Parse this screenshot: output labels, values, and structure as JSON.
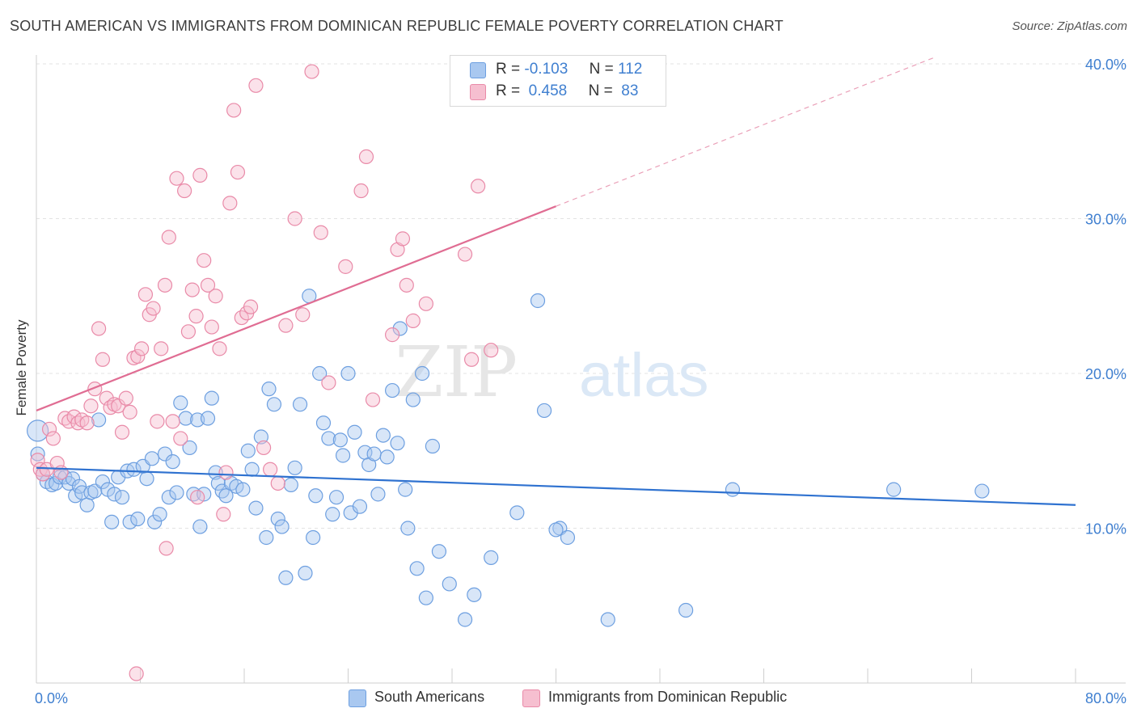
{
  "title": "SOUTH AMERICAN VS IMMIGRANTS FROM DOMINICAN REPUBLIC FEMALE POVERTY CORRELATION CHART",
  "source": "Source: ZipAtlas.com",
  "watermark": {
    "zip": "ZIP",
    "atlas": "atlas"
  },
  "legend_top": [
    {
      "r_label": "R =",
      "r_value": "-0.103",
      "n_label": "N =",
      "n_value": "112",
      "color": "#a9c8f0",
      "border": "#6d9fe0"
    },
    {
      "r_label": "R =",
      "r_value": " 0.458",
      "n_label": "N =",
      "n_value": " 83",
      "color": "#f6bfd0",
      "border": "#e98aa8"
    }
  ],
  "legend_bottom": [
    {
      "label": "South Americans",
      "color": "#a9c8f0",
      "border": "#6d9fe0"
    },
    {
      "label": "Immigrants from Dominican Republic",
      "color": "#f6bfd0",
      "border": "#e98aa8"
    }
  ],
  "chart_data": {
    "type": "scatter",
    "title": "SOUTH AMERICAN VS IMMIGRANTS FROM DOMINICAN REPUBLIC FEMALE POVERTY CORRELATION CHART",
    "xlabel": "",
    "ylabel": "Female Poverty",
    "xlim": [
      0,
      80
    ],
    "ylim": [
      0,
      40
    ],
    "x_tick_labels": [
      "0.0%",
      "80.0%"
    ],
    "y_ticks": [
      10,
      20,
      30,
      40
    ],
    "y_tick_labels": [
      "10.0%",
      "20.0%",
      "30.0%",
      "40.0%"
    ],
    "grid": true,
    "legend_placement": "top-center",
    "series": [
      {
        "name": "South Americans",
        "color": "#6d9fe0",
        "fill": "#a9c8f0",
        "r": -0.103,
        "n": 112,
        "trend": {
          "x0": 0,
          "y0": 13.9,
          "x1": 80,
          "y1": 11.5
        },
        "points": [
          [
            0.1,
            16.3
          ],
          [
            0.1,
            14.8
          ],
          [
            0.5,
            13.5
          ],
          [
            0.8,
            13.0
          ],
          [
            1.2,
            12.8
          ],
          [
            1.5,
            12.9
          ],
          [
            1.8,
            13.3
          ],
          [
            2.2,
            13.3
          ],
          [
            2.5,
            12.9
          ],
          [
            2.8,
            13.2
          ],
          [
            3.0,
            12.1
          ],
          [
            3.3,
            12.7
          ],
          [
            3.5,
            12.3
          ],
          [
            3.9,
            11.5
          ],
          [
            4.2,
            12.3
          ],
          [
            4.5,
            12.4
          ],
          [
            4.8,
            17.0
          ],
          [
            5.1,
            13.0
          ],
          [
            5.5,
            12.5
          ],
          [
            5.8,
            10.4
          ],
          [
            6.0,
            12.2
          ],
          [
            6.3,
            13.3
          ],
          [
            6.6,
            12.0
          ],
          [
            7.0,
            13.7
          ],
          [
            7.2,
            10.4
          ],
          [
            7.5,
            13.8
          ],
          [
            7.8,
            10.6
          ],
          [
            8.2,
            14.0
          ],
          [
            8.5,
            13.2
          ],
          [
            8.9,
            14.5
          ],
          [
            9.1,
            10.4
          ],
          [
            9.5,
            10.9
          ],
          [
            9.9,
            14.8
          ],
          [
            10.2,
            12.0
          ],
          [
            10.5,
            14.3
          ],
          [
            10.8,
            12.3
          ],
          [
            11.1,
            18.1
          ],
          [
            11.5,
            17.1
          ],
          [
            11.8,
            15.2
          ],
          [
            12.1,
            12.2
          ],
          [
            12.4,
            17.0
          ],
          [
            12.6,
            10.1
          ],
          [
            12.9,
            12.2
          ],
          [
            13.2,
            17.1
          ],
          [
            13.5,
            18.4
          ],
          [
            13.8,
            13.6
          ],
          [
            14.0,
            12.9
          ],
          [
            14.3,
            12.4
          ],
          [
            14.6,
            12.1
          ],
          [
            15.0,
            12.9
          ],
          [
            15.4,
            12.7
          ],
          [
            15.9,
            12.5
          ],
          [
            16.3,
            15.0
          ],
          [
            16.6,
            13.8
          ],
          [
            16.9,
            11.3
          ],
          [
            17.3,
            15.9
          ],
          [
            17.7,
            9.4
          ],
          [
            17.9,
            19.0
          ],
          [
            18.3,
            18.0
          ],
          [
            18.6,
            10.6
          ],
          [
            18.9,
            10.1
          ],
          [
            19.2,
            6.8
          ],
          [
            19.6,
            12.8
          ],
          [
            19.9,
            13.9
          ],
          [
            20.3,
            18.0
          ],
          [
            20.7,
            7.1
          ],
          [
            21.0,
            25.0
          ],
          [
            21.3,
            9.4
          ],
          [
            21.5,
            12.1
          ],
          [
            21.8,
            20.0
          ],
          [
            22.1,
            16.8
          ],
          [
            22.5,
            15.8
          ],
          [
            22.8,
            10.9
          ],
          [
            23.1,
            12.0
          ],
          [
            23.4,
            15.7
          ],
          [
            23.6,
            14.7
          ],
          [
            24.0,
            20.0
          ],
          [
            24.2,
            11.0
          ],
          [
            24.5,
            16.2
          ],
          [
            24.9,
            11.4
          ],
          [
            25.3,
            14.9
          ],
          [
            25.6,
            14.1
          ],
          [
            26.0,
            14.8
          ],
          [
            26.3,
            12.2
          ],
          [
            26.7,
            16.0
          ],
          [
            27.0,
            14.6
          ],
          [
            27.4,
            18.9
          ],
          [
            27.8,
            15.5
          ],
          [
            28.0,
            22.9
          ],
          [
            28.4,
            12.5
          ],
          [
            28.6,
            10.0
          ],
          [
            29.0,
            18.3
          ],
          [
            29.3,
            7.4
          ],
          [
            29.7,
            20.0
          ],
          [
            30.0,
            5.5
          ],
          [
            30.5,
            15.3
          ],
          [
            31.0,
            8.5
          ],
          [
            31.8,
            6.4
          ],
          [
            33.0,
            4.1
          ],
          [
            33.7,
            5.7
          ],
          [
            35.0,
            8.1
          ],
          [
            37.0,
            11.0
          ],
          [
            38.6,
            24.7
          ],
          [
            39.1,
            17.6
          ],
          [
            40.3,
            10.0
          ],
          [
            40.9,
            9.4
          ],
          [
            44.0,
            4.1
          ],
          [
            50.0,
            4.7
          ],
          [
            53.6,
            12.5
          ],
          [
            66.0,
            12.5
          ],
          [
            72.8,
            12.4
          ],
          [
            40.0,
            9.9
          ]
        ]
      },
      {
        "name": "Immigrants from Dominican Republic",
        "color": "#e98aa8",
        "fill": "#f6bfd0",
        "r": 0.458,
        "n": 83,
        "trend": {
          "x0": 0,
          "y0": 17.6,
          "x1": 40,
          "y1": 30.8,
          "dash_x1": 80,
          "dash_y1": 44.0
        },
        "points": [
          [
            0.1,
            14.4
          ],
          [
            0.3,
            13.8
          ],
          [
            0.5,
            13.5
          ],
          [
            0.8,
            13.8
          ],
          [
            1.0,
            16.4
          ],
          [
            1.3,
            15.8
          ],
          [
            1.6,
            14.2
          ],
          [
            1.9,
            13.6
          ],
          [
            2.2,
            17.1
          ],
          [
            2.5,
            16.9
          ],
          [
            2.9,
            17.2
          ],
          [
            3.2,
            16.8
          ],
          [
            3.5,
            17.0
          ],
          [
            3.9,
            16.8
          ],
          [
            4.2,
            17.9
          ],
          [
            4.5,
            19.0
          ],
          [
            4.8,
            22.9
          ],
          [
            5.1,
            20.9
          ],
          [
            5.4,
            18.4
          ],
          [
            5.7,
            17.8
          ],
          [
            6.0,
            18.0
          ],
          [
            6.3,
            17.9
          ],
          [
            6.6,
            16.2
          ],
          [
            6.9,
            18.4
          ],
          [
            7.2,
            17.5
          ],
          [
            7.5,
            21.0
          ],
          [
            7.8,
            21.1
          ],
          [
            8.1,
            21.6
          ],
          [
            8.4,
            25.1
          ],
          [
            8.7,
            23.8
          ],
          [
            9.0,
            24.2
          ],
          [
            9.3,
            16.9
          ],
          [
            9.6,
            21.6
          ],
          [
            9.9,
            25.7
          ],
          [
            10.2,
            28.8
          ],
          [
            10.5,
            16.9
          ],
          [
            10.8,
            32.6
          ],
          [
            11.1,
            15.8
          ],
          [
            11.4,
            31.8
          ],
          [
            11.7,
            22.7
          ],
          [
            12.0,
            25.4
          ],
          [
            12.3,
            23.7
          ],
          [
            12.6,
            32.8
          ],
          [
            12.9,
            27.3
          ],
          [
            13.2,
            25.7
          ],
          [
            13.5,
            23.0
          ],
          [
            13.8,
            25.0
          ],
          [
            14.1,
            21.6
          ],
          [
            14.4,
            10.9
          ],
          [
            14.6,
            13.6
          ],
          [
            14.9,
            31.0
          ],
          [
            15.2,
            37.0
          ],
          [
            15.5,
            33.0
          ],
          [
            15.8,
            23.6
          ],
          [
            16.2,
            23.9
          ],
          [
            16.5,
            24.3
          ],
          [
            16.9,
            38.6
          ],
          [
            17.5,
            15.2
          ],
          [
            18.0,
            13.8
          ],
          [
            18.6,
            12.9
          ],
          [
            19.2,
            23.1
          ],
          [
            19.9,
            30.0
          ],
          [
            20.5,
            23.8
          ],
          [
            21.2,
            39.5
          ],
          [
            21.9,
            29.1
          ],
          [
            22.5,
            19.4
          ],
          [
            23.8,
            26.9
          ],
          [
            25.0,
            31.8
          ],
          [
            25.4,
            34.0
          ],
          [
            25.9,
            18.3
          ],
          [
            27.4,
            22.5
          ],
          [
            27.8,
            28.0
          ],
          [
            28.2,
            28.7
          ],
          [
            28.5,
            25.7
          ],
          [
            29.0,
            23.4
          ],
          [
            30.0,
            24.5
          ],
          [
            33.0,
            27.7
          ],
          [
            33.5,
            20.9
          ],
          [
            34.0,
            32.1
          ],
          [
            35.0,
            21.5
          ],
          [
            10.0,
            8.7
          ],
          [
            7.7,
            0.6
          ],
          [
            12.4,
            12.0
          ]
        ]
      }
    ]
  }
}
